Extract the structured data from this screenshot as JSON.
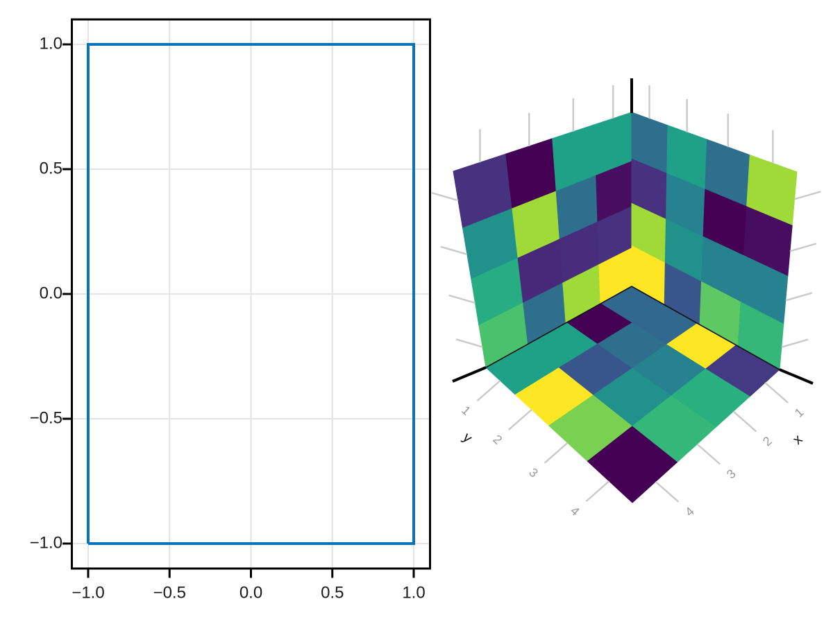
{
  "figure": {
    "background": "#ffffff",
    "panels": [
      "axis-2d-line-plot",
      "axis-3d-heatmap-cube"
    ]
  },
  "chart_data": [
    {
      "type": "line",
      "title": "",
      "xlabel": "",
      "ylabel": "",
      "description": "closed rectangle outline traced from (-1,-1) to (1,1)",
      "x": [
        -1,
        1,
        1,
        -1,
        -1
      ],
      "y": [
        -1,
        -1,
        1,
        1,
        -1
      ],
      "line_color": "#0b73b3",
      "line_width": 4,
      "xlim": [
        -1.1,
        1.1
      ],
      "ylim": [
        -1.1,
        1.1
      ],
      "grid": true,
      "grid_color": "#e4e4e4",
      "spine_color": "#000000",
      "tick_label_color": "#1a1a1a",
      "xticks": [
        -1.0,
        -0.5,
        0.0,
        0.5,
        1.0
      ],
      "yticks": [
        1.0,
        0.5,
        0.0,
        -0.5,
        -1.0
      ],
      "xtick_labels": [
        "−1.0",
        "−0.5",
        "0.0",
        "0.5",
        "1.0"
      ],
      "ytick_labels": [
        "1.0",
        "0.5",
        "0.0",
        "−0.5",
        "−1.0"
      ]
    },
    {
      "type": "heatmap",
      "projection": "3d-corner-view",
      "colormap": "viridis",
      "title": "",
      "xlabel": "x",
      "ylabel": "y",
      "xticks": [
        1,
        2,
        3,
        4
      ],
      "yticks": [
        1,
        2,
        3,
        4
      ],
      "xtick_labels": [
        "1",
        "2",
        "3",
        "4"
      ],
      "ytick_labels": [
        "1",
        "2",
        "3",
        "4"
      ],
      "tick_line_color": "#c9c9c9",
      "tick_label_color": "#9a9a9a",
      "axis_label_color": "#111111",
      "spine_color": "#000000",
      "faces": {
        "left_wall": {
          "plane": "x-z wall",
          "grid": "4x4",
          "rows_top_to_bottom_cols_inner_to_outer": [
            [
              "#1fa187",
              "#1fa187",
              "#440154",
              "#46327e"
            ],
            [
              "#470d60",
              "#2e6f8e",
              "#a0da39",
              "#21918c"
            ],
            [
              "#46327e",
              "#472d7b",
              "#482878",
              "#27ad81"
            ],
            [
              "#fde725",
              "#a0da39",
              "#2e6f8e",
              "#4ac16d"
            ]
          ]
        },
        "right_wall": {
          "plane": "y-z wall",
          "grid": "4x4",
          "rows_top_to_bottom_cols_inner_to_outer": [
            [
              "#2e6f8e",
              "#1fa187",
              "#2e6f8e",
              "#a0da39"
            ],
            [
              "#46327e",
              "#26828e",
              "#440154",
              "#470d60"
            ],
            [
              "#a0da39",
              "#21918c",
              "#26828e",
              "#26828e"
            ],
            [
              "#fde725",
              "#39568c",
              "#5ec962",
              "#35b779"
            ]
          ]
        },
        "floor": {
          "plane": "x-y floor",
          "grid": "4x4",
          "rows_x1_to_x4_cols_y1_to_y4": [
            [
              "#31688e",
              "#31688e",
              "#fde725",
              "#443983"
            ],
            [
              "#440154",
              "#2e6f8e",
              "#26828e",
              "#2ab07f"
            ],
            [
              "#1fa187",
              "#39568c",
              "#21918c",
              "#35b779"
            ],
            [
              "#1fa187",
              "#fde725",
              "#7ad151",
              "#440154"
            ]
          ]
        }
      }
    }
  ]
}
